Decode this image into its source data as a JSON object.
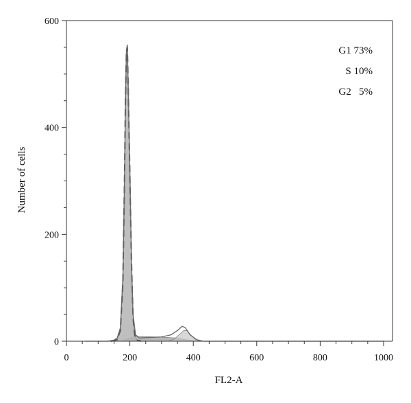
{
  "chart_data": {
    "type": "area",
    "xlabel": "FL2-A",
    "ylabel": "Number of cells",
    "xlim": [
      0,
      1024
    ],
    "ylim": [
      0,
      600
    ],
    "x_ticks": [
      0,
      200,
      400,
      600,
      800,
      1000
    ],
    "y_ticks": [
      0,
      200,
      400,
      600
    ],
    "grid": false,
    "legend": {
      "placement": "top-right",
      "entries": [
        "G1 73%",
        "S 10%",
        "G2   5%"
      ]
    },
    "series": [
      {
        "role": "measured-histogram",
        "color": "#666666",
        "points": [
          [
            60,
            0
          ],
          [
            100,
            0
          ],
          [
            130,
            0
          ],
          [
            150,
            2
          ],
          [
            160,
            6
          ],
          [
            170,
            25
          ],
          [
            178,
            120
          ],
          [
            183,
            300
          ],
          [
            186,
            450
          ],
          [
            189,
            545
          ],
          [
            192,
            555
          ],
          [
            195,
            470
          ],
          [
            200,
            320
          ],
          [
            205,
            150
          ],
          [
            210,
            50
          ],
          [
            218,
            12
          ],
          [
            230,
            6
          ],
          [
            260,
            7
          ],
          [
            300,
            8
          ],
          [
            330,
            12
          ],
          [
            350,
            20
          ],
          [
            365,
            28
          ],
          [
            375,
            25
          ],
          [
            390,
            12
          ],
          [
            410,
            3
          ],
          [
            430,
            0
          ],
          [
            1000,
            0
          ]
        ]
      },
      {
        "role": "g1-fit",
        "color": "#b4b4b4",
        "points": [
          [
            140,
            0
          ],
          [
            160,
            3
          ],
          [
            170,
            20
          ],
          [
            178,
            110
          ],
          [
            183,
            300
          ],
          [
            186,
            450
          ],
          [
            189,
            540
          ],
          [
            192,
            550
          ],
          [
            195,
            470
          ],
          [
            200,
            310
          ],
          [
            205,
            150
          ],
          [
            210,
            45
          ],
          [
            215,
            12
          ],
          [
            222,
            2
          ],
          [
            235,
            0
          ]
        ]
      },
      {
        "role": "s-phase-fit",
        "color": "#9a9a9a",
        "points": [
          [
            170,
            0
          ],
          [
            190,
            4
          ],
          [
            210,
            8
          ],
          [
            240,
            9
          ],
          [
            280,
            8
          ],
          [
            320,
            7
          ],
          [
            350,
            6
          ],
          [
            375,
            3
          ],
          [
            400,
            1
          ],
          [
            420,
            0
          ]
        ]
      },
      {
        "role": "g2-fit",
        "color": "#c8c8c8",
        "points": [
          [
            320,
            0
          ],
          [
            340,
            4
          ],
          [
            355,
            12
          ],
          [
            370,
            20
          ],
          [
            380,
            20
          ],
          [
            392,
            12
          ],
          [
            405,
            4
          ],
          [
            420,
            0
          ]
        ]
      }
    ]
  }
}
